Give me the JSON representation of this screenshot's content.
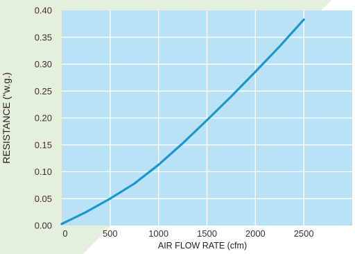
{
  "colors": {
    "plot_background": "#b9e2f6",
    "backdrop": "#e4efdc",
    "grid": "#ffffff",
    "line": "#1a96d0"
  },
  "chart_data": {
    "type": "line",
    "xlabel": "AIR FLOW RATE (cfm)",
    "ylabel": "RESISTANCE (\"w.g.)",
    "xlim": [
      0,
      3000
    ],
    "ylim": [
      0,
      0.4
    ],
    "x_ticks": [
      0,
      500,
      1000,
      1500,
      2000,
      2500
    ],
    "y_ticks": [
      0.0,
      0.05,
      0.1,
      0.15,
      0.2,
      0.25,
      0.3,
      0.35,
      0.4
    ],
    "x_tick_labels": [
      "0",
      "500",
      "1000",
      "1500",
      "2000",
      "2500"
    ],
    "y_tick_labels": [
      "0.00",
      "0.05",
      "0.10",
      "0.15",
      "0.20",
      "0.25",
      "0.30",
      "0.35",
      "0.40"
    ],
    "grid": true,
    "series": [
      {
        "x": [
          0,
          250,
          500,
          750,
          1000,
          1250,
          1500,
          1750,
          2000,
          2250,
          2500
        ],
        "y": [
          0.003,
          0.025,
          0.05,
          0.078,
          0.113,
          0.153,
          0.196,
          0.24,
          0.286,
          0.333,
          0.383
        ]
      }
    ]
  }
}
